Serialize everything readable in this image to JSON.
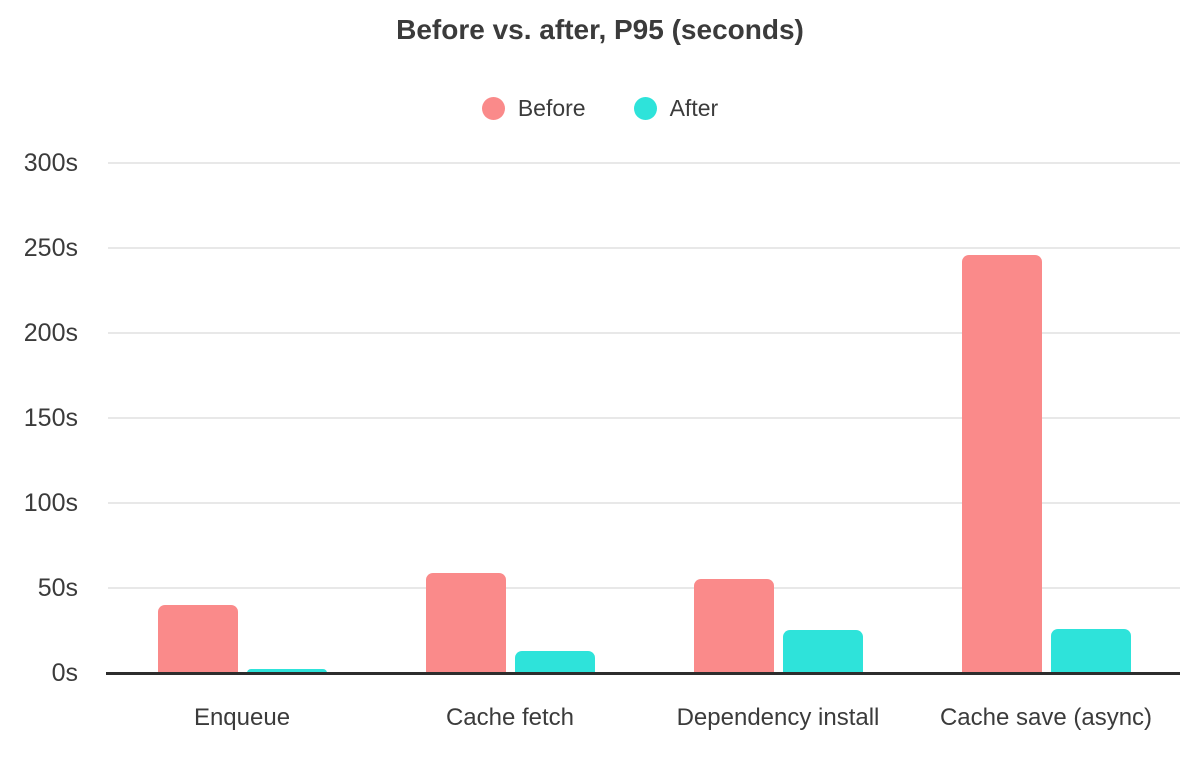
{
  "page": {
    "background": "#ffffff",
    "text_color": "#3b3b3b"
  },
  "chart_data": {
    "type": "bar",
    "title": "Before vs. after, P95 (seconds)",
    "categories": [
      "Enqueue",
      "Cache fetch",
      "Dependency install",
      "Cache save (async)"
    ],
    "series": [
      {
        "name": "Before",
        "color": "#fa8a8a",
        "values": [
          40,
          59,
          55,
          246
        ]
      },
      {
        "name": "After",
        "color": "#2ee3da",
        "values": [
          2.5,
          13,
          25,
          26
        ]
      }
    ],
    "xlabel": "",
    "ylabel": "",
    "ylim": [
      0,
      300
    ],
    "ytick_step": 50,
    "ytick_labels": [
      "0s",
      "50s",
      "100s",
      "150s",
      "200s",
      "250s",
      "300s"
    ],
    "grid": true,
    "grid_color": "#e8e8e8",
    "axis_color": "#2d2d2d",
    "legend_position": "top"
  }
}
